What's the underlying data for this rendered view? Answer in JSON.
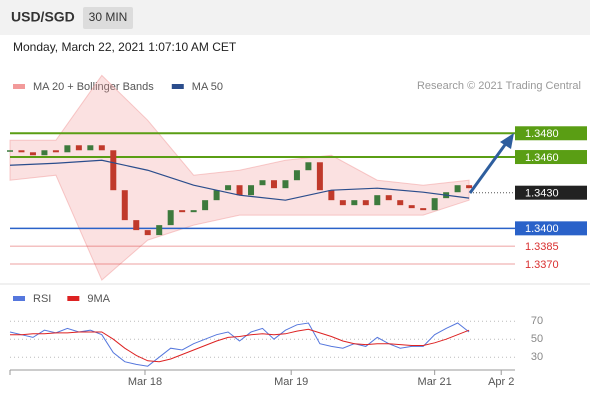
{
  "header": {
    "symbol": "USD/SGD",
    "timeframe": "30 MIN",
    "datetime": "Monday, March 22, 2021 1:07:10 AM CET"
  },
  "chart_data": [
    {
      "type": "candlestick",
      "credit": "Research © 2021 Trading Central",
      "xlim": [
        0,
        44
      ],
      "ylim": [
        1.3354,
        1.3508
      ],
      "x": [
        0,
        1,
        2,
        3,
        4,
        5,
        6,
        7,
        8,
        9,
        10,
        11,
        12,
        13,
        14,
        15,
        16,
        17,
        18,
        19,
        20,
        21,
        22,
        23,
        24,
        25,
        26,
        27,
        28,
        29,
        30,
        31,
        32,
        33,
        34,
        35,
        36,
        37,
        38,
        39,
        40
      ],
      "close": [
        1.34657,
        1.3464,
        1.34615,
        1.34657,
        1.3464,
        1.34699,
        1.34657,
        1.34699,
        1.34657,
        1.34321,
        1.34069,
        1.33985,
        1.33943,
        1.34027,
        1.34153,
        1.34136,
        1.34153,
        1.34237,
        1.34321,
        1.34363,
        1.34279,
        1.34363,
        1.34405,
        1.34338,
        1.34405,
        1.34489,
        1.34556,
        1.34321,
        1.34237,
        1.34195,
        1.34237,
        1.34195,
        1.34279,
        1.34237,
        1.34195,
        1.3417,
        1.34153,
        1.34254,
        1.34304,
        1.34363,
        1.34338
      ],
      "up_color": "#3d7a3d",
      "down_color": "#c0392b",
      "series": [
        {
          "name": "MA 20 + Bollinger Bands",
          "color": "#f29a9a",
          "x": [
            0,
            4,
            8,
            12,
            16,
            20,
            24,
            28,
            32,
            36,
            40
          ],
          "upper": [
            1.34741,
            1.34741,
            1.35287,
            1.34909,
            1.34447,
            1.34489,
            1.34573,
            1.34615,
            1.34405,
            1.34363,
            1.34405
          ],
          "lower": [
            1.34405,
            1.34447,
            1.33565,
            1.33901,
            1.34027,
            1.34111,
            1.34111,
            1.34111,
            1.34111,
            1.34111,
            1.34237
          ]
        },
        {
          "name": "MA 50",
          "color": "#2b4d8c",
          "x": [
            0,
            4,
            8,
            12,
            16,
            20,
            24,
            28,
            32,
            36,
            40
          ],
          "values": [
            1.34531,
            1.34548,
            1.34573,
            1.34489,
            1.34363,
            1.34279,
            1.34237,
            1.34321,
            1.34338,
            1.34304,
            1.34254
          ]
        }
      ],
      "levels": [
        {
          "value": 1.348,
          "label": "1.3480",
          "color": "#5a9e14",
          "style": "box",
          "line": "solid"
        },
        {
          "value": 1.346,
          "label": "1.3460",
          "color": "#5a9e14",
          "style": "box",
          "line": "solid"
        },
        {
          "value": 1.343,
          "label": "1.3430",
          "color": "#222222",
          "style": "box",
          "line": "dotted"
        },
        {
          "value": 1.34,
          "label": "1.3400",
          "color": "#2a62c9",
          "style": "box",
          "line": "solid"
        },
        {
          "value": 1.3385,
          "label": "1.3385",
          "color": "#d93030",
          "style": "plain",
          "line": "thin"
        },
        {
          "value": 1.337,
          "label": "1.3370",
          "color": "#d93030",
          "style": "plain",
          "line": "thin"
        }
      ]
    },
    {
      "type": "line",
      "xlim": [
        0,
        44
      ],
      "ylim": [
        18,
        88
      ],
      "yticks": [
        30,
        50,
        70
      ],
      "xticks": [
        {
          "value": 11.76,
          "label": "Mar 18"
        },
        {
          "value": 24.5,
          "label": "Mar 19"
        },
        {
          "value": 37,
          "label": "Mar 21"
        },
        {
          "value": 42.8,
          "label": "Apr 2"
        }
      ],
      "x": [
        0,
        1,
        2,
        3,
        4,
        5,
        6,
        7,
        8,
        9,
        10,
        11,
        12,
        13,
        14,
        15,
        16,
        17,
        18,
        19,
        20,
        21,
        22,
        23,
        24,
        25,
        26,
        27,
        28,
        29,
        30,
        31,
        32,
        33,
        34,
        35,
        36,
        37,
        38,
        39,
        40
      ],
      "series": [
        {
          "name": "RSI",
          "color": "#5577dd",
          "values": [
            58,
            55,
            52,
            60,
            57,
            62,
            58,
            60,
            55,
            35,
            25,
            22,
            20,
            30,
            40,
            38,
            45,
            50,
            55,
            58,
            48,
            58,
            62,
            50,
            60,
            66,
            68,
            45,
            42,
            40,
            45,
            42,
            52,
            45,
            40,
            42,
            42,
            55,
            62,
            68,
            58
          ]
        },
        {
          "name": "9MA",
          "color": "#dd2222",
          "values": [
            55,
            55,
            56,
            56,
            57,
            57,
            58,
            58,
            58,
            50,
            40,
            32,
            26,
            25,
            28,
            33,
            38,
            43,
            48,
            52,
            53,
            55,
            56,
            55,
            56,
            59,
            61,
            57,
            53,
            48,
            45,
            44,
            45,
            45,
            44,
            43,
            43,
            46,
            50,
            55,
            60
          ]
        }
      ]
    }
  ]
}
